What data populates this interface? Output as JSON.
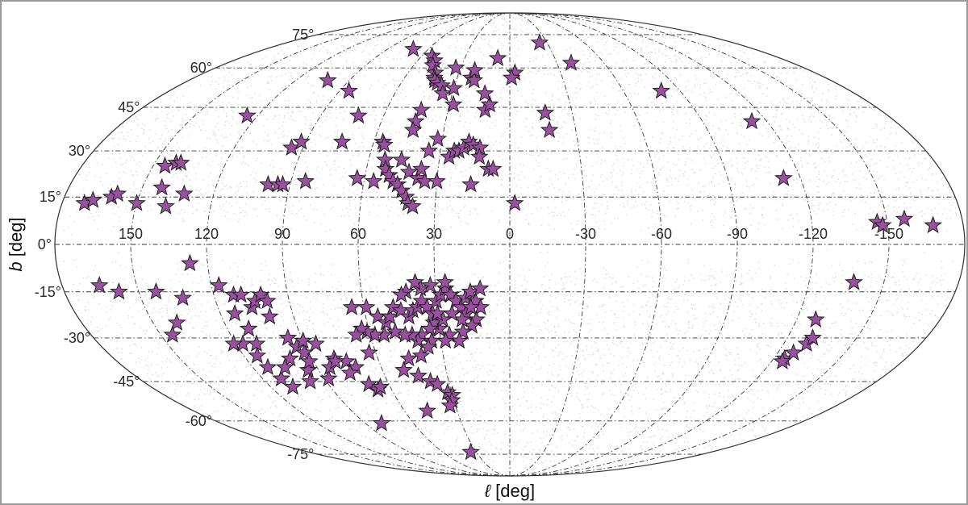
{
  "chart_data": {
    "type": "scatter",
    "projection": "mollweide",
    "xlabel_italic": "ℓ",
    "xlabel_rest": " [deg]",
    "ylabel_italic": "b",
    "ylabel_rest": " [deg]",
    "title": "",
    "lon_ticks": [
      150,
      120,
      90,
      60,
      30,
      0,
      -30,
      -60,
      -90,
      -120,
      -150
    ],
    "lon_tick_labels": [
      "150",
      "120",
      "90",
      "60",
      "30",
      "0",
      "-30",
      "-60",
      "-90",
      "-120",
      "-150"
    ],
    "lat_ticks": [
      75,
      60,
      45,
      30,
      15,
      0,
      -15,
      -30,
      -45,
      -60,
      -75
    ],
    "lat_tick_labels": [
      "75°",
      "60°",
      "45°",
      "30°",
      "15°",
      "0°",
      "-15°",
      "-30°",
      "-45°",
      "-60°",
      "-75°"
    ],
    "grid": true,
    "background": "grey catalogue points (dense except near b = 0)",
    "colors": {
      "marker": "#9b4fa0",
      "marker_edge": "#1e1e1e",
      "background_points": "#7a7a7a",
      "grid": "#3a3a3a"
    },
    "series": [
      {
        "marker": "star",
        "points": [
          [
            171,
            13
          ],
          [
            168,
            14
          ],
          [
            161,
            15
          ],
          [
            159,
            16
          ],
          [
            150,
            13
          ],
          [
            145,
            25
          ],
          [
            141,
            26
          ],
          [
            139,
            26
          ],
          [
            142,
            18
          ],
          [
            138,
            12
          ],
          [
            132,
            16
          ],
          [
            125,
            42
          ],
          [
            102,
            55
          ],
          [
            85,
            51
          ],
          [
            72,
            42
          ],
          [
            95,
            31
          ],
          [
            92,
            33
          ],
          [
            74,
            33
          ],
          [
            84,
            20
          ],
          [
            99,
            19
          ],
          [
            95,
            19
          ],
          [
            93,
            19
          ],
          [
            71,
            68
          ],
          [
            53,
            65
          ],
          [
            49,
            63
          ],
          [
            48,
            61
          ],
          [
            44,
            58
          ],
          [
            43,
            56
          ],
          [
            42,
            55
          ],
          [
            40,
            54
          ],
          [
            37,
            53
          ],
          [
            35,
            50
          ],
          [
            22,
            56
          ],
          [
            20,
            55
          ],
          [
            30,
            52
          ],
          [
            28,
            46
          ],
          [
            43,
            44
          ],
          [
            44,
            40
          ],
          [
            44,
            37
          ],
          [
            56,
            33
          ],
          [
            55,
            32
          ],
          [
            46,
            27
          ],
          [
            42,
            23
          ],
          [
            38,
            21
          ],
          [
            35,
            20
          ],
          [
            30,
            20
          ],
          [
            26,
            28
          ],
          [
            24,
            30
          ],
          [
            22,
            30
          ],
          [
            20,
            31
          ],
          [
            18,
            33
          ],
          [
            16,
            32
          ],
          [
            13,
            31
          ],
          [
            13,
            28
          ],
          [
            9,
            24
          ],
          [
            7,
            24
          ],
          [
            12,
            44
          ],
          [
            10,
            46
          ],
          [
            13,
            50
          ],
          [
            33,
            60
          ],
          [
            21,
            59
          ],
          [
            8,
            64
          ],
          [
            -3,
            58
          ],
          [
            -1,
            56
          ],
          [
            -24,
            71
          ],
          [
            -39,
            62
          ],
          [
            -80,
            51
          ],
          [
            -113,
            40
          ],
          [
            -113,
            21
          ],
          [
            -17,
            43
          ],
          [
            -18,
            37
          ],
          [
            -2,
            13
          ],
          [
            53,
            27
          ],
          [
            52,
            24
          ],
          [
            50,
            22
          ],
          [
            48,
            20
          ],
          [
            46,
            19
          ],
          [
            44,
            17
          ],
          [
            42,
            15
          ],
          [
            41,
            13
          ],
          [
            39,
            12
          ],
          [
            56,
            20
          ],
          [
            63,
            21
          ],
          [
            16,
            19
          ],
          [
            32,
            34
          ],
          [
            35,
            30
          ],
          [
            37,
            24
          ],
          [
            -146,
            7
          ],
          [
            -148,
            6
          ],
          [
            -157,
            8
          ],
          [
            -168,
            6
          ],
          [
            -138,
            -12
          ],
          [
            158,
            -15
          ],
          [
            143,
            -15
          ],
          [
            133,
            -17
          ],
          [
            127,
            -6
          ],
          [
            117,
            -13
          ],
          [
            112,
            -16
          ],
          [
            109,
            -16
          ],
          [
            114,
            -22
          ],
          [
            111,
            -27
          ],
          [
            106,
            -20
          ],
          [
            104,
            -18
          ],
          [
            101,
            -16
          ],
          [
            99,
            -18
          ],
          [
            100,
            -23
          ],
          [
            96,
            -30
          ],
          [
            94,
            -33
          ],
          [
            92,
            -35
          ],
          [
            90,
            -31
          ],
          [
            85,
            -32
          ],
          [
            80,
            -37
          ],
          [
            75,
            -38
          ],
          [
            72,
            -40
          ],
          [
            65,
            -20
          ],
          [
            59,
            -20
          ],
          [
            55,
            -23
          ],
          [
            52,
            -25
          ],
          [
            50,
            -23
          ],
          [
            48,
            -20
          ],
          [
            45,
            -21
          ],
          [
            42,
            -23
          ],
          [
            40,
            -21
          ],
          [
            38,
            -20
          ],
          [
            36,
            -18
          ],
          [
            34,
            -20
          ],
          [
            32,
            -22
          ],
          [
            30,
            -18
          ],
          [
            28,
            -16
          ],
          [
            26,
            -14
          ],
          [
            24,
            -16
          ],
          [
            22,
            -18
          ],
          [
            20,
            -20
          ],
          [
            18,
            -17
          ],
          [
            16,
            -15
          ],
          [
            14,
            -18
          ],
          [
            12,
            -14
          ],
          [
            12,
            -20
          ],
          [
            14,
            -24
          ],
          [
            16,
            -26
          ],
          [
            20,
            -28
          ],
          [
            22,
            -31
          ],
          [
            26,
            -29
          ],
          [
            28,
            -31
          ],
          [
            30,
            -27
          ],
          [
            32,
            -25
          ],
          [
            34,
            -27
          ],
          [
            38,
            -29
          ],
          [
            40,
            -31
          ],
          [
            42,
            -29
          ],
          [
            45,
            -29
          ],
          [
            49,
            -28
          ],
          [
            54,
            -29
          ],
          [
            58,
            -29
          ],
          [
            61,
            -28
          ],
          [
            63,
            -27
          ],
          [
            66,
            -29
          ],
          [
            26,
            -12
          ],
          [
            32,
            -13
          ],
          [
            36,
            -14
          ],
          [
            38,
            -12
          ],
          [
            42,
            -15
          ],
          [
            44,
            -16
          ],
          [
            18,
            -22
          ],
          [
            16,
            -20
          ],
          [
            20,
            -24
          ],
          [
            24,
            -22
          ],
          [
            28,
            -24
          ],
          [
            30,
            -22
          ],
          [
            34,
            -31
          ],
          [
            36,
            -33
          ],
          [
            40,
            -36
          ],
          [
            46,
            -37
          ],
          [
            50,
            -41
          ],
          [
            44,
            -43
          ],
          [
            39,
            -45
          ],
          [
            36,
            -46
          ],
          [
            32,
            -49
          ],
          [
            30,
            -50
          ],
          [
            31,
            -52
          ],
          [
            33,
            -54
          ],
          [
            47,
            -56
          ],
          [
            80,
            -61
          ],
          [
            95,
            -41
          ],
          [
            92,
            -38
          ],
          [
            88,
            -44
          ],
          [
            84,
            -40
          ],
          [
            80,
            -38
          ],
          [
            76,
            -42
          ],
          [
            70,
            -46
          ],
          [
            67,
            -48
          ],
          [
            65,
            -47
          ],
          [
            100,
            -37
          ],
          [
            109,
            -47
          ],
          [
            111,
            -44
          ],
          [
            117,
            -32
          ],
          [
            121,
            -32
          ],
          [
            114,
            -36
          ],
          [
            111,
            -32
          ],
          [
            113,
            -40
          ],
          [
            105,
            -40
          ],
          [
            98,
            -45
          ],
          [
            63,
            -35
          ],
          [
            35,
            -74
          ],
          [
            140,
            -25
          ],
          [
            145,
            -29
          ],
          [
            165,
            -13
          ],
          [
            -125,
            -37
          ],
          [
            -127,
            -35
          ],
          [
            -130,
            -32
          ],
          [
            -131,
            -30
          ],
          [
            -128,
            -24
          ],
          [
            -125,
            -38
          ]
        ]
      }
    ]
  }
}
